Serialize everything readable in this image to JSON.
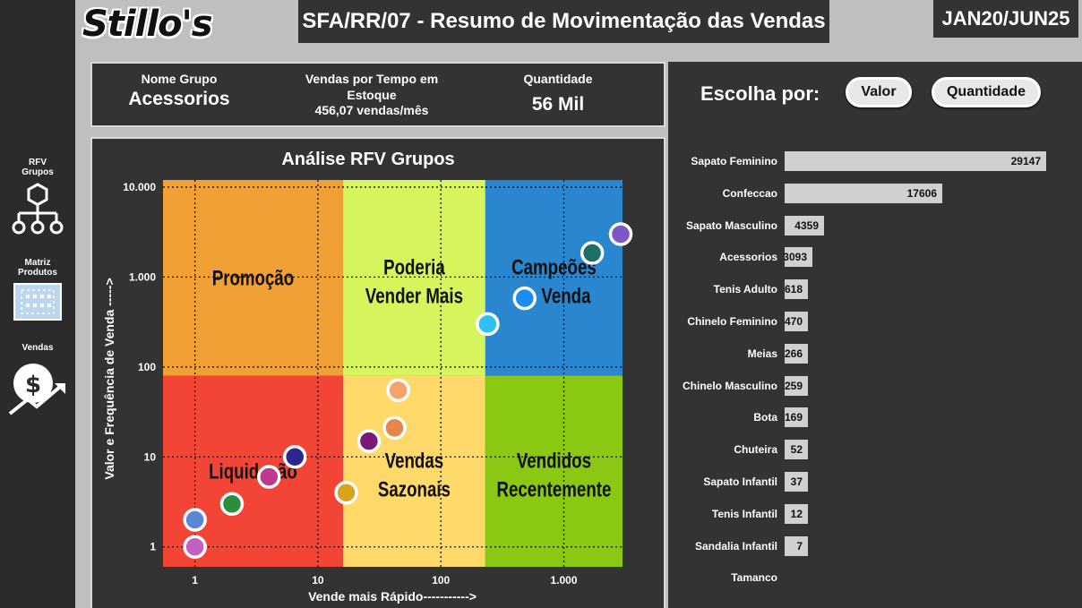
{
  "header": {
    "logo": "Stillo's",
    "title": "SFA/RR/07 - Resumo de Movimentação das Vendas",
    "period": "JAN20/JUN25"
  },
  "nav": {
    "items": [
      {
        "label_line1": "RFV",
        "label_line2": "Grupos",
        "icon": "hierarchy-icon"
      },
      {
        "label_line1": "Matriz",
        "label_line2": "Produtos",
        "icon": "matrix-grid-icon"
      },
      {
        "label_line1": "Vendas",
        "label_line2": "",
        "icon": "sales-growth-icon"
      }
    ]
  },
  "info": {
    "group_label": "Nome Grupo",
    "group_value": "Acessorios",
    "time_label_line1": "Vendas por Tempo em",
    "time_label_line2": "Estoque",
    "time_value": "456,07 vendas/mês",
    "qty_label": "Quantidade",
    "qty_value": "56 Mil"
  },
  "choose": {
    "label": "Escolha por:",
    "option_value": "Valor",
    "option_quantity": "Quantidade"
  },
  "bar_chart": {
    "categories": [
      "Sapato Feminino",
      "Confeccao",
      "Sapato Masculino",
      "Acessorios",
      "Tenis Adulto",
      "Chinelo Feminino",
      "Meias",
      "Chinelo Masculino",
      "Bota",
      "Chuteira",
      "Sapato Infantil",
      "Tenis Infantil",
      "Sandalia Infantil",
      "Tamanco"
    ],
    "values": [
      29147,
      17606,
      4359,
      3093,
      618,
      470,
      266,
      259,
      169,
      52,
      37,
      12,
      7,
      null
    ],
    "labels": [
      "29147",
      "17606",
      "4359",
      "3093",
      "618",
      "470",
      "266",
      "259",
      "169",
      "52",
      "37",
      "12",
      "7",
      ""
    ],
    "bar_color": "#d0d0d0"
  },
  "chart_data": {
    "type": "scatter",
    "title": "Análise RFV Grupos",
    "xlabel": "Vende mais Rápido----------->",
    "ylabel": "Valor e Frequência de Venda ----->",
    "x_scale": "log",
    "y_scale": "log",
    "xlim": [
      0.55,
      3000
    ],
    "ylim": [
      0.6,
      12000
    ],
    "x_ticks": [
      {
        "v": 1,
        "label": "1"
      },
      {
        "v": 10,
        "label": "10"
      },
      {
        "v": 100,
        "label": "100"
      },
      {
        "v": 1000,
        "label": "1.000"
      }
    ],
    "y_ticks": [
      {
        "v": 1,
        "label": "1"
      },
      {
        "v": 10,
        "label": "10"
      },
      {
        "v": 100,
        "label": "100"
      },
      {
        "v": 1000,
        "label": "1.000"
      },
      {
        "v": 10000,
        "label": "10.000"
      }
    ],
    "grid": true,
    "quadrants": [
      {
        "label_line1": "Promoção",
        "label_line2": "",
        "color": "#f0a035",
        "x_range": [
          0.55,
          16
        ],
        "y_range": [
          80,
          12000
        ]
      },
      {
        "label_line1": "Poderia",
        "label_line2": "Vender Mais",
        "color": "#d6f55c",
        "x_range": [
          16,
          230
        ],
        "y_range": [
          80,
          12000
        ]
      },
      {
        "label_line1": "Campeões",
        "label_line2": "de Venda",
        "color": "#2b86d0",
        "x_range": [
          230,
          3000
        ],
        "y_range": [
          80,
          12000
        ]
      },
      {
        "label_line1": "Liquidação",
        "label_line2": "",
        "color": "#f24535",
        "x_range": [
          0.55,
          16
        ],
        "y_range": [
          0.6,
          80
        ]
      },
      {
        "label_line1": "Vendas",
        "label_line2": "Sazonais",
        "color": "#ffd96a",
        "x_range": [
          16,
          230
        ],
        "y_range": [
          0.6,
          80
        ]
      },
      {
        "label_line1": "Vendidos",
        "label_line2": "Recentemente",
        "color": "#8bc814",
        "x_range": [
          230,
          3000
        ],
        "y_range": [
          0.6,
          80
        ]
      }
    ],
    "points": [
      {
        "x": 2900,
        "y": 3000,
        "color": "#7b57c8"
      },
      {
        "x": 1700,
        "y": 1850,
        "color": "#1e6e6a"
      },
      {
        "x": 480,
        "y": 580,
        "color": "#1d8cf0"
      },
      {
        "x": 240,
        "y": 300,
        "color": "#2ec0f0"
      },
      {
        "x": 45,
        "y": 55,
        "color": "#f5a36a"
      },
      {
        "x": 42,
        "y": 21,
        "color": "#e5874a"
      },
      {
        "x": 26,
        "y": 15,
        "color": "#7a1a74"
      },
      {
        "x": 6.5,
        "y": 10,
        "color": "#2d2590"
      },
      {
        "x": 4,
        "y": 6,
        "color": "#c0388f"
      },
      {
        "x": 2,
        "y": 3,
        "color": "#2c8e3a"
      },
      {
        "x": 17,
        "y": 4,
        "color": "#d8a41a"
      },
      {
        "x": 1,
        "y": 2,
        "color": "#5b86d8"
      },
      {
        "x": 1,
        "y": 1,
        "color": "#c060c0"
      }
    ]
  }
}
